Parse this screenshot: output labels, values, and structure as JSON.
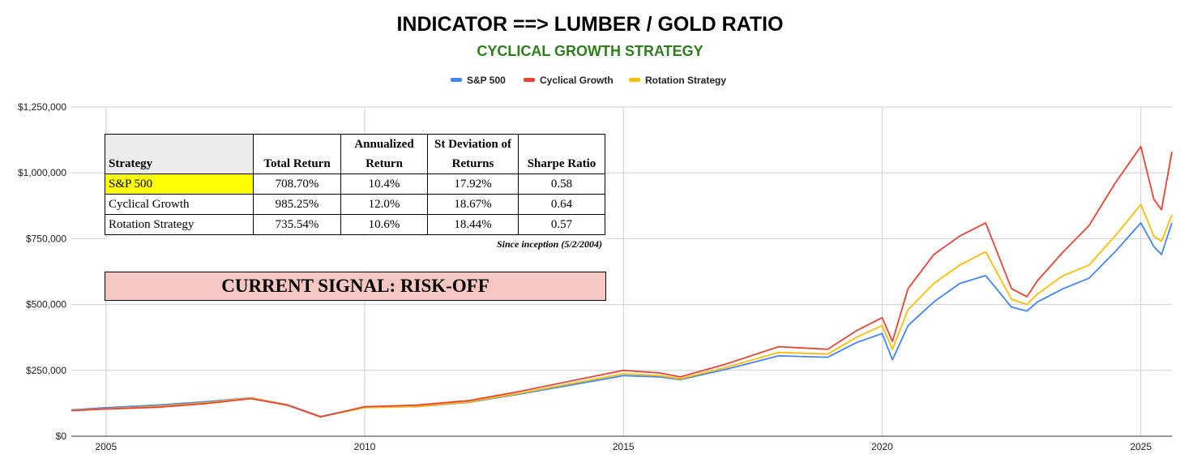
{
  "title": "INDICATOR ==> LUMBER / GOLD RATIO",
  "subtitle": "CYCLICAL GROWTH STRATEGY",
  "table": {
    "headers": [
      "Strategy",
      "Total Return",
      "Annualized Return",
      "St Deviation of Returns",
      "Sharpe Ratio"
    ],
    "rows": [
      {
        "name": "S&P 500",
        "total": "708.70%",
        "annualized": "10.4%",
        "stdev": "17.92%",
        "sharpe": "0.58"
      },
      {
        "name": "Cyclical Growth",
        "total": "985.25%",
        "annualized": "12.0%",
        "stdev": "18.67%",
        "sharpe": "0.64"
      },
      {
        "name": "Rotation Strategy",
        "total": "735.54%",
        "annualized": "10.6%",
        "stdev": "18.44%",
        "sharpe": "0.57"
      }
    ],
    "note": "Since inception (5/2/2004)"
  },
  "signal": "CURRENT SIGNAL: RISK-OFF",
  "chart_data": {
    "type": "line",
    "title": "INDICATOR ==> LUMBER / GOLD RATIO",
    "subtitle": "CYCLICAL GROWTH STRATEGY",
    "legend_position": "top-center",
    "grid": true,
    "xlim": [
      2004.33,
      2025.6
    ],
    "ylim": [
      0,
      1250000
    ],
    "x_ticks": [
      2005,
      2010,
      2015,
      2020,
      2025
    ],
    "x_tick_labels": [
      "2005",
      "2010",
      "2015",
      "2020",
      "2025"
    ],
    "y_ticks": [
      0,
      250000,
      500000,
      750000,
      1000000,
      1250000
    ],
    "y_tick_labels": [
      "$0",
      "$250,000",
      "$500,000",
      "$750,000",
      "$1,000,000",
      "$1,250,000"
    ],
    "series": [
      {
        "name": "S&P 500",
        "color": "#4285f4",
        "x": [
          2004.33,
          2005.0,
          2006.0,
          2007.0,
          2007.8,
          2008.5,
          2009.15,
          2010.0,
          2011.0,
          2012.0,
          2013.0,
          2014.0,
          2015.0,
          2015.7,
          2016.1,
          2017.0,
          2018.0,
          2018.95,
          2019.5,
          2020.0,
          2020.2,
          2020.5,
          2021.0,
          2021.5,
          2022.0,
          2022.5,
          2022.8,
          2023.0,
          2023.5,
          2024.0,
          2024.5,
          2025.0,
          2025.25,
          2025.4,
          2025.6
        ],
        "y": [
          100000,
          108000,
          118000,
          132000,
          146000,
          120000,
          75000,
          110000,
          112000,
          128000,
          160000,
          195000,
          230000,
          225000,
          215000,
          255000,
          305000,
          300000,
          355000,
          390000,
          290000,
          420000,
          510000,
          580000,
          610000,
          490000,
          475000,
          510000,
          560000,
          600000,
          700000,
          810000,
          720000,
          690000,
          810000
        ]
      },
      {
        "name": "Cyclical Growth",
        "color": "#ea4335",
        "x": [
          2004.33,
          2005.0,
          2006.0,
          2007.0,
          2007.8,
          2008.5,
          2009.15,
          2010.0,
          2011.0,
          2012.0,
          2013.0,
          2014.0,
          2015.0,
          2015.7,
          2016.1,
          2017.0,
          2018.0,
          2018.95,
          2019.5,
          2020.0,
          2020.2,
          2020.5,
          2021.0,
          2021.5,
          2022.0,
          2022.5,
          2022.8,
          2023.0,
          2023.5,
          2024.0,
          2024.5,
          2025.0,
          2025.25,
          2025.4,
          2025.6
        ],
        "y": [
          97000,
          103000,
          110000,
          125000,
          143000,
          118000,
          73000,
          112000,
          118000,
          135000,
          170000,
          210000,
          250000,
          240000,
          225000,
          275000,
          340000,
          330000,
          400000,
          450000,
          360000,
          560000,
          690000,
          760000,
          810000,
          560000,
          530000,
          590000,
          700000,
          800000,
          960000,
          1100000,
          900000,
          860000,
          1080000
        ]
      },
      {
        "name": "Rotation Strategy",
        "color": "#fbbc04",
        "x": [
          2004.33,
          2005.0,
          2006.0,
          2007.0,
          2007.8,
          2008.5,
          2009.15,
          2010.0,
          2011.0,
          2012.0,
          2013.0,
          2014.0,
          2015.0,
          2015.7,
          2016.1,
          2017.0,
          2018.0,
          2018.95,
          2019.5,
          2020.0,
          2020.2,
          2020.5,
          2021.0,
          2021.5,
          2022.0,
          2022.5,
          2022.8,
          2023.0,
          2023.5,
          2024.0,
          2024.5,
          2025.0,
          2025.25,
          2025.4,
          2025.6
        ],
        "y": [
          98000,
          104000,
          113000,
          128000,
          145000,
          119000,
          74000,
          108000,
          113000,
          130000,
          163000,
          200000,
          237000,
          230000,
          218000,
          262000,
          318000,
          312000,
          375000,
          420000,
          330000,
          480000,
          580000,
          650000,
          700000,
          520000,
          500000,
          540000,
          610000,
          650000,
          760000,
          880000,
          760000,
          740000,
          840000
        ]
      }
    ]
  }
}
